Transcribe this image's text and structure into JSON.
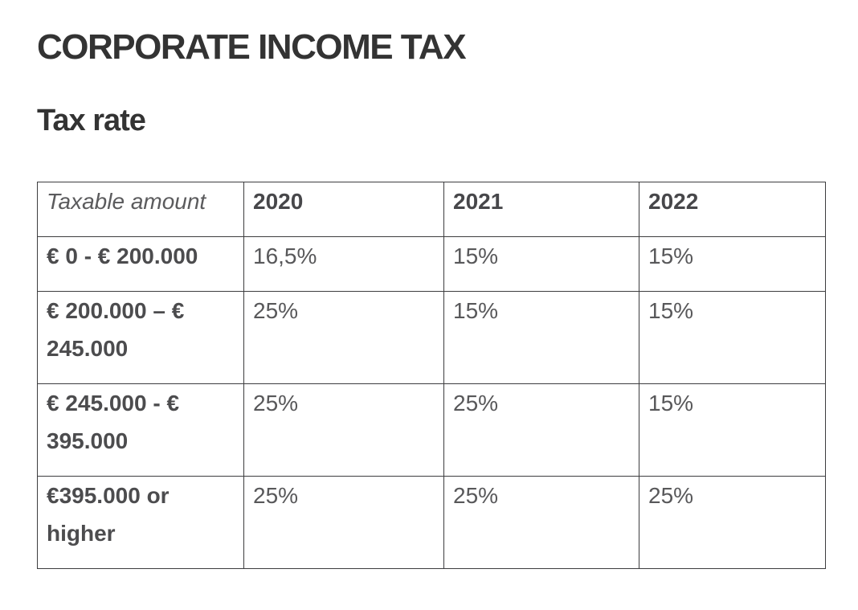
{
  "page": {
    "title": "CORPORATE INCOME TAX",
    "subtitle": "Tax rate"
  },
  "table": {
    "columns": [
      "Taxable amount",
      "2020",
      "2021",
      "2022"
    ],
    "rows": [
      {
        "label": "€ 0 - € 200.000",
        "values": [
          "16,5%",
          "15%",
          "15%"
        ]
      },
      {
        "label": "€ 200.000 – € 245.000",
        "values": [
          "25%",
          "15%",
          "15%"
        ]
      },
      {
        "label": "€ 245.000 - € 395.000",
        "values": [
          "25%",
          "25%",
          "15%"
        ]
      },
      {
        "label": "€395.000 or higher",
        "values": [
          "25%",
          "25%",
          "25%"
        ]
      }
    ]
  },
  "colors": {
    "heading_text": "#333333",
    "table_border": "#3d3d3f",
    "table_text": "#58585a",
    "background": "#ffffff"
  }
}
